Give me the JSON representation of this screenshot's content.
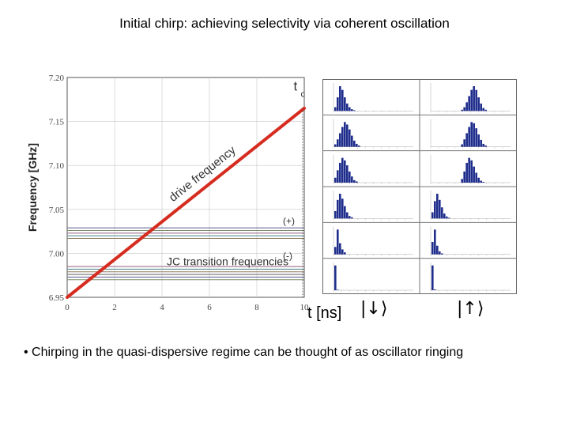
{
  "slide": {
    "title": "Initial chirp: achieving selectivity via coherent oscillation",
    "bullet": "• Chirping in the quasi-dispersive regime can be thought of as oscillator ringing"
  },
  "colors": {
    "drive_line": "#d62c1f",
    "jc_lines": "#6f7a8a",
    "histogram_bars": "#1f2d8c",
    "grid": "#c8c8c8"
  },
  "chart_data": [
    {
      "type": "line",
      "title": "",
      "xlabel": "t [ns]",
      "ylabel": "Frequency [GHz]",
      "xlim": [
        0,
        10
      ],
      "ylim": [
        6.95,
        7.2
      ],
      "x_ticks": [
        "0",
        "2",
        "4",
        "6",
        "8",
        "10"
      ],
      "y_ticks": [
        "6.95",
        "7.00",
        "7.05",
        "7.10",
        "7.15",
        "7.20"
      ],
      "grid": true,
      "series": [
        {
          "name": "drive frequency",
          "x": [
            0,
            10
          ],
          "y": [
            6.95,
            7.165
          ]
        }
      ],
      "jc_transition_frequencies": {
        "upper_branch": [
          7.029,
          7.026,
          7.023,
          7.02,
          7.017
        ],
        "lower_branch": [
          6.985,
          6.982,
          6.979,
          6.976,
          6.973,
          6.97
        ]
      },
      "annotations": {
        "drive_label": "drive frequency",
        "jc_label": "JC transition frequencies",
        "plus": "(+)",
        "minus": "(-)",
        "tc": "t",
        "tc_sub": "c"
      }
    },
    {
      "type": "bar",
      "title": "",
      "rows": 6,
      "columns": [
        "|↓⟩",
        "|↑⟩"
      ],
      "histograms": [
        [
          [
            0.15,
            0.55,
            1.0,
            0.85,
            0.55,
            0.3,
            0.15,
            0.07,
            0.03
          ],
          [
            0.05,
            0.15,
            0.35,
            0.6,
            0.85,
            1.0,
            0.85,
            0.55,
            0.3,
            0.12,
            0.05
          ]
        ],
        [
          [
            0.1,
            0.3,
            0.55,
            0.8,
            1.0,
            0.9,
            0.7,
            0.45,
            0.25,
            0.12,
            0.05
          ],
          [
            0.1,
            0.3,
            0.55,
            0.8,
            1.0,
            0.95,
            0.75,
            0.5,
            0.28,
            0.12,
            0.05
          ]
        ],
        [
          [
            0.2,
            0.5,
            0.8,
            1.0,
            0.9,
            0.7,
            0.45,
            0.25,
            0.1,
            0.05
          ],
          [
            0.15,
            0.45,
            0.8,
            1.0,
            0.9,
            0.65,
            0.4,
            0.2,
            0.08,
            0.03
          ]
        ],
        [
          [
            0.3,
            0.75,
            1.0,
            0.8,
            0.5,
            0.25,
            0.1,
            0.05
          ],
          [
            0.25,
            0.7,
            1.0,
            0.75,
            0.45,
            0.2,
            0.08,
            0.03
          ]
        ],
        [
          [
            0.3,
            1.0,
            0.45,
            0.2,
            0.08
          ],
          [
            0.5,
            1.0,
            0.35,
            0.12,
            0.04
          ]
        ],
        [
          [
            1.0,
            0.02
          ],
          [
            1.0,
            0.03
          ]
        ]
      ],
      "x_axis_label": "t [ns]"
    }
  ]
}
